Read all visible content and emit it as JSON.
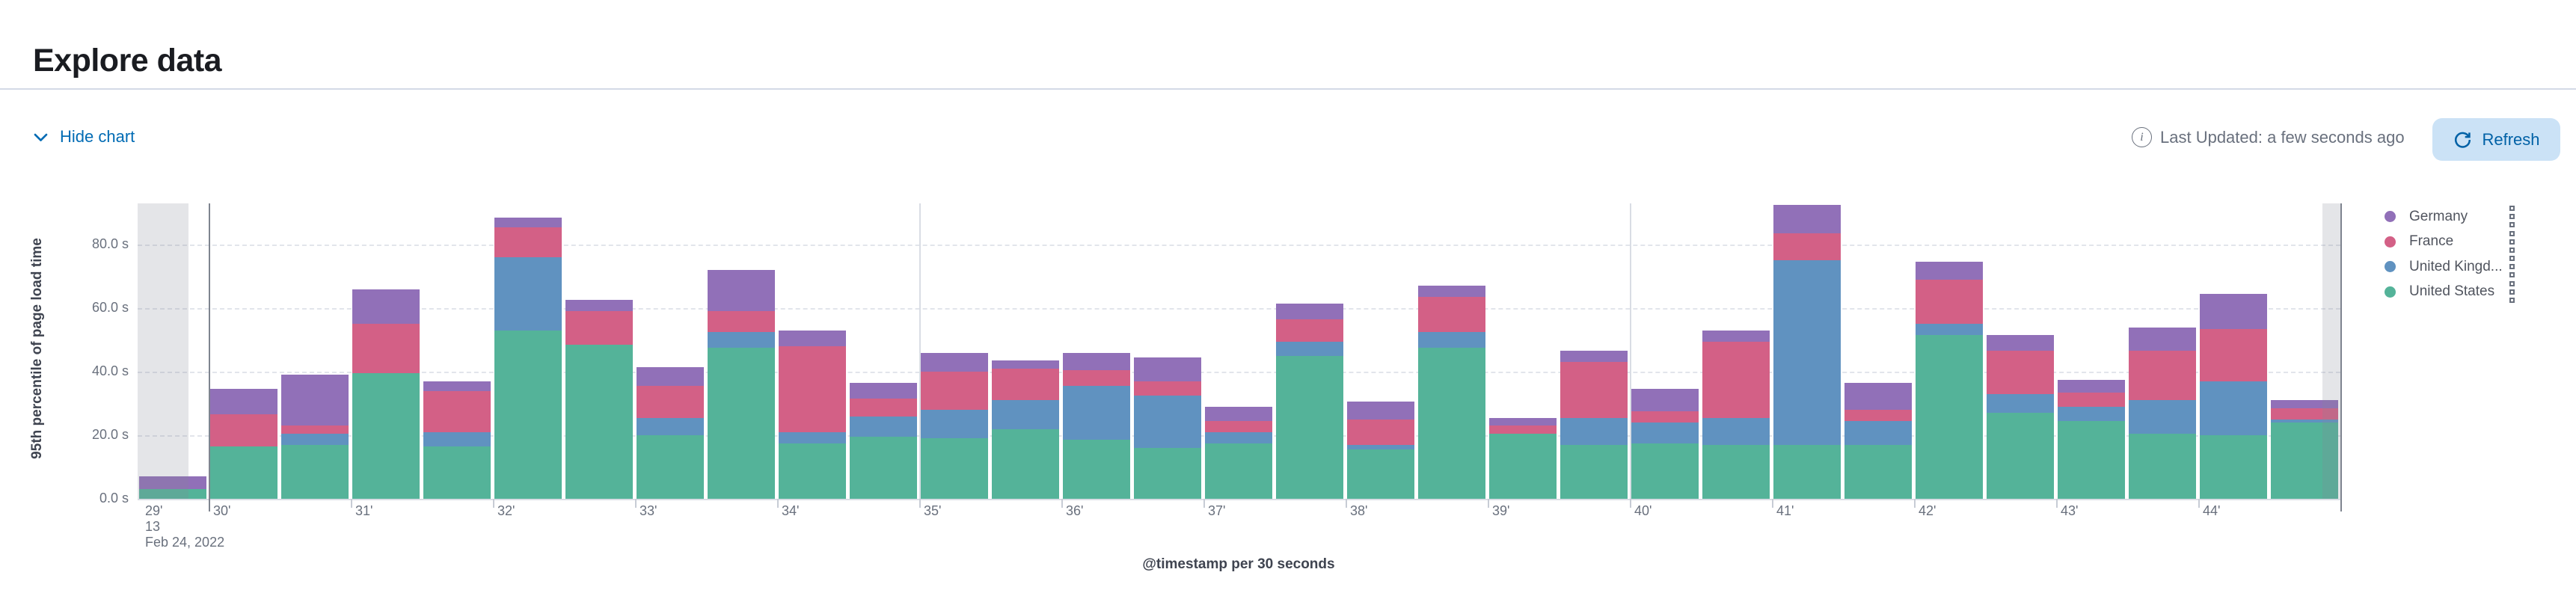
{
  "header": {
    "title": "Explore data"
  },
  "controls": {
    "hide_chart_label": "Hide chart",
    "last_updated_text": "Last Updated: a few seconds ago",
    "refresh_label": "Refresh"
  },
  "colors": {
    "link": "#006bb4",
    "refresh_button_bg": "#cbe2f6",
    "refresh_button_text": "#0061a6",
    "axis_text": "#69707d",
    "partial_bucket_overlay": "rgba(130,136,150,0.22)"
  },
  "chart_data": {
    "type": "bar",
    "stacked": true,
    "xlabel": "@timestamp per 30 seconds",
    "ylabel": "95th percentile of page load time",
    "ylim": [
      0,
      93
    ],
    "y_ticks_seconds": [
      0,
      20,
      40,
      60,
      80
    ],
    "y_tick_labels": [
      "0.0 s",
      "20.0 s",
      "40.0 s",
      "60.0 s",
      "80.0 s"
    ],
    "x_tick_labels": [
      "29'",
      "30'",
      "31'",
      "32'",
      "33'",
      "34'",
      "35'",
      "36'",
      "37'",
      "38'",
      "39'",
      "40'",
      "41'",
      "42'",
      "43'",
      "44'"
    ],
    "x_first_tick_extra_lines": [
      "13",
      "Feb 24, 2022"
    ],
    "grid": "dashed-horizontal",
    "legend_position": "right",
    "categories": [
      "13:29:30",
      "13:30:00",
      "13:30:30",
      "13:31:00",
      "13:31:30",
      "13:32:00",
      "13:32:30",
      "13:33:00",
      "13:33:30",
      "13:34:00",
      "13:34:30",
      "13:35:00",
      "13:35:30",
      "13:36:00",
      "13:36:30",
      "13:37:00",
      "13:37:30",
      "13:38:00",
      "13:38:30",
      "13:39:00",
      "13:39:30",
      "13:40:00",
      "13:40:30",
      "13:41:00",
      "13:41:30",
      "13:42:00",
      "13:42:30",
      "13:43:00",
      "13:43:30",
      "13:44:00",
      "13:44:30"
    ],
    "series": [
      {
        "name": "United States",
        "color": "#54B399",
        "values": [
          3,
          16.5,
          17,
          39.5,
          16.5,
          53,
          48.5,
          20,
          47.5,
          17.5,
          19.5,
          19,
          22,
          18.5,
          16,
          17.5,
          45,
          15.5,
          47.5,
          20.5,
          17,
          17.5,
          17,
          17,
          17,
          51.5,
          27,
          24.5,
          20.5,
          20,
          24
        ]
      },
      {
        "name": "United Kingdom",
        "color": "#6092C0",
        "values": [
          0,
          0,
          3.5,
          0,
          4.5,
          23,
          0,
          5.5,
          5,
          3.5,
          6.5,
          9,
          9,
          17,
          16.5,
          3.5,
          4.5,
          1.5,
          5,
          0,
          8.5,
          6.5,
          8.5,
          58,
          7.5,
          3.5,
          6,
          4.5,
          10.5,
          17,
          1
        ]
      },
      {
        "name": "France",
        "color": "#D36086",
        "values": [
          0,
          10,
          2.5,
          15.5,
          13,
          9.5,
          10.5,
          10,
          6.5,
          27,
          5.5,
          12,
          10,
          5,
          4.5,
          3.5,
          7,
          8,
          11,
          2.5,
          17.5,
          3.5,
          24,
          8.5,
          3.5,
          14,
          13.5,
          4.5,
          15.5,
          16.5,
          3.5
        ]
      },
      {
        "name": "Germany",
        "color": "#9170B8",
        "values": [
          4,
          8,
          16,
          11,
          3,
          3,
          3.5,
          6,
          13,
          5,
          5,
          6,
          2.5,
          5.5,
          7.5,
          4.5,
          5,
          5.5,
          3.5,
          2.5,
          3.5,
          7,
          3.5,
          9,
          8.5,
          5.5,
          5,
          4,
          7.5,
          11,
          2.5
        ]
      }
    ],
    "legend_items": [
      {
        "label": "Germany",
        "color": "#9170B8"
      },
      {
        "label": "France",
        "color": "#D36086"
      },
      {
        "label": "United Kingd...",
        "color": "#6092C0"
      },
      {
        "label": "United States",
        "color": "#54B399"
      }
    ],
    "partial_buckets": {
      "left": true,
      "right": true
    },
    "time_range_markers_minutes": [
      "30'",
      "45'"
    ]
  }
}
